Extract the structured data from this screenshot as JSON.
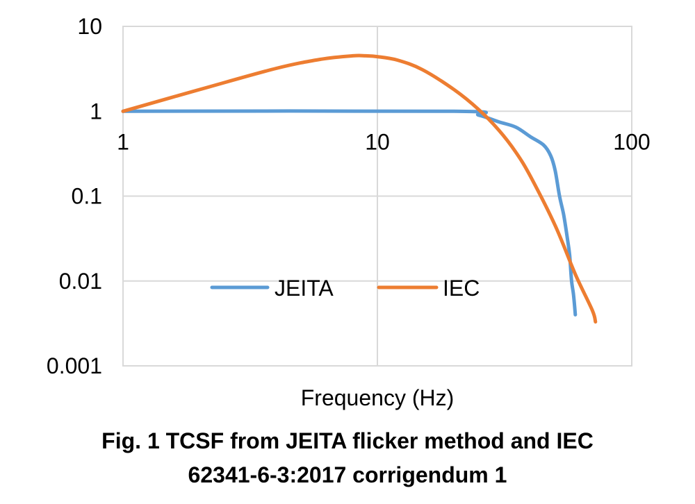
{
  "chart_data": {
    "type": "line",
    "x_scale": "log",
    "y_scale": "log",
    "xlabel": "Frequency (Hz)",
    "ylabel": "",
    "xlim": [
      1,
      100
    ],
    "ylim": [
      0.001,
      10
    ],
    "x_ticks": [
      "1",
      "10",
      "100"
    ],
    "y_ticks": [
      "10",
      "1",
      "0.1",
      "0.01",
      "0.001"
    ],
    "grid": true,
    "legend_position": "bottom-center",
    "series": [
      {
        "name": "JEITA",
        "color": "#5b9bd5",
        "points": [
          [
            1,
            1
          ],
          [
            20,
            1
          ],
          [
            25,
            0.9
          ],
          [
            30,
            0.75
          ],
          [
            35,
            0.65
          ],
          [
            40,
            0.5
          ],
          [
            45,
            0.4
          ],
          [
            48,
            0.3
          ],
          [
            50,
            0.2
          ],
          [
            52,
            0.1
          ],
          [
            54,
            0.06
          ],
          [
            56,
            0.03
          ],
          [
            57,
            0.02
          ],
          [
            58,
            0.01
          ],
          [
            59,
            0.007
          ],
          [
            60,
            0.004
          ]
        ]
      },
      {
        "name": "IEC",
        "color": "#ed7d31",
        "points": [
          [
            1,
            1
          ],
          [
            2,
            1.8
          ],
          [
            4,
            3.2
          ],
          [
            6,
            4.1
          ],
          [
            8,
            4.5
          ],
          [
            9,
            4.5
          ],
          [
            10,
            4.4
          ],
          [
            12,
            4.0
          ],
          [
            15,
            3.1
          ],
          [
            20,
            1.8
          ],
          [
            25,
            1.05
          ],
          [
            30,
            0.6
          ],
          [
            35,
            0.33
          ],
          [
            40,
            0.17
          ],
          [
            50,
            0.045
          ],
          [
            60,
            0.012
          ],
          [
            70,
            0.0045
          ],
          [
            72,
            0.0033
          ]
        ]
      }
    ]
  },
  "caption": {
    "line1": "Fig. 1 TCSF from JEITA flicker method and IEC",
    "line2": "62341-6-3:2017 corrigendum 1"
  }
}
